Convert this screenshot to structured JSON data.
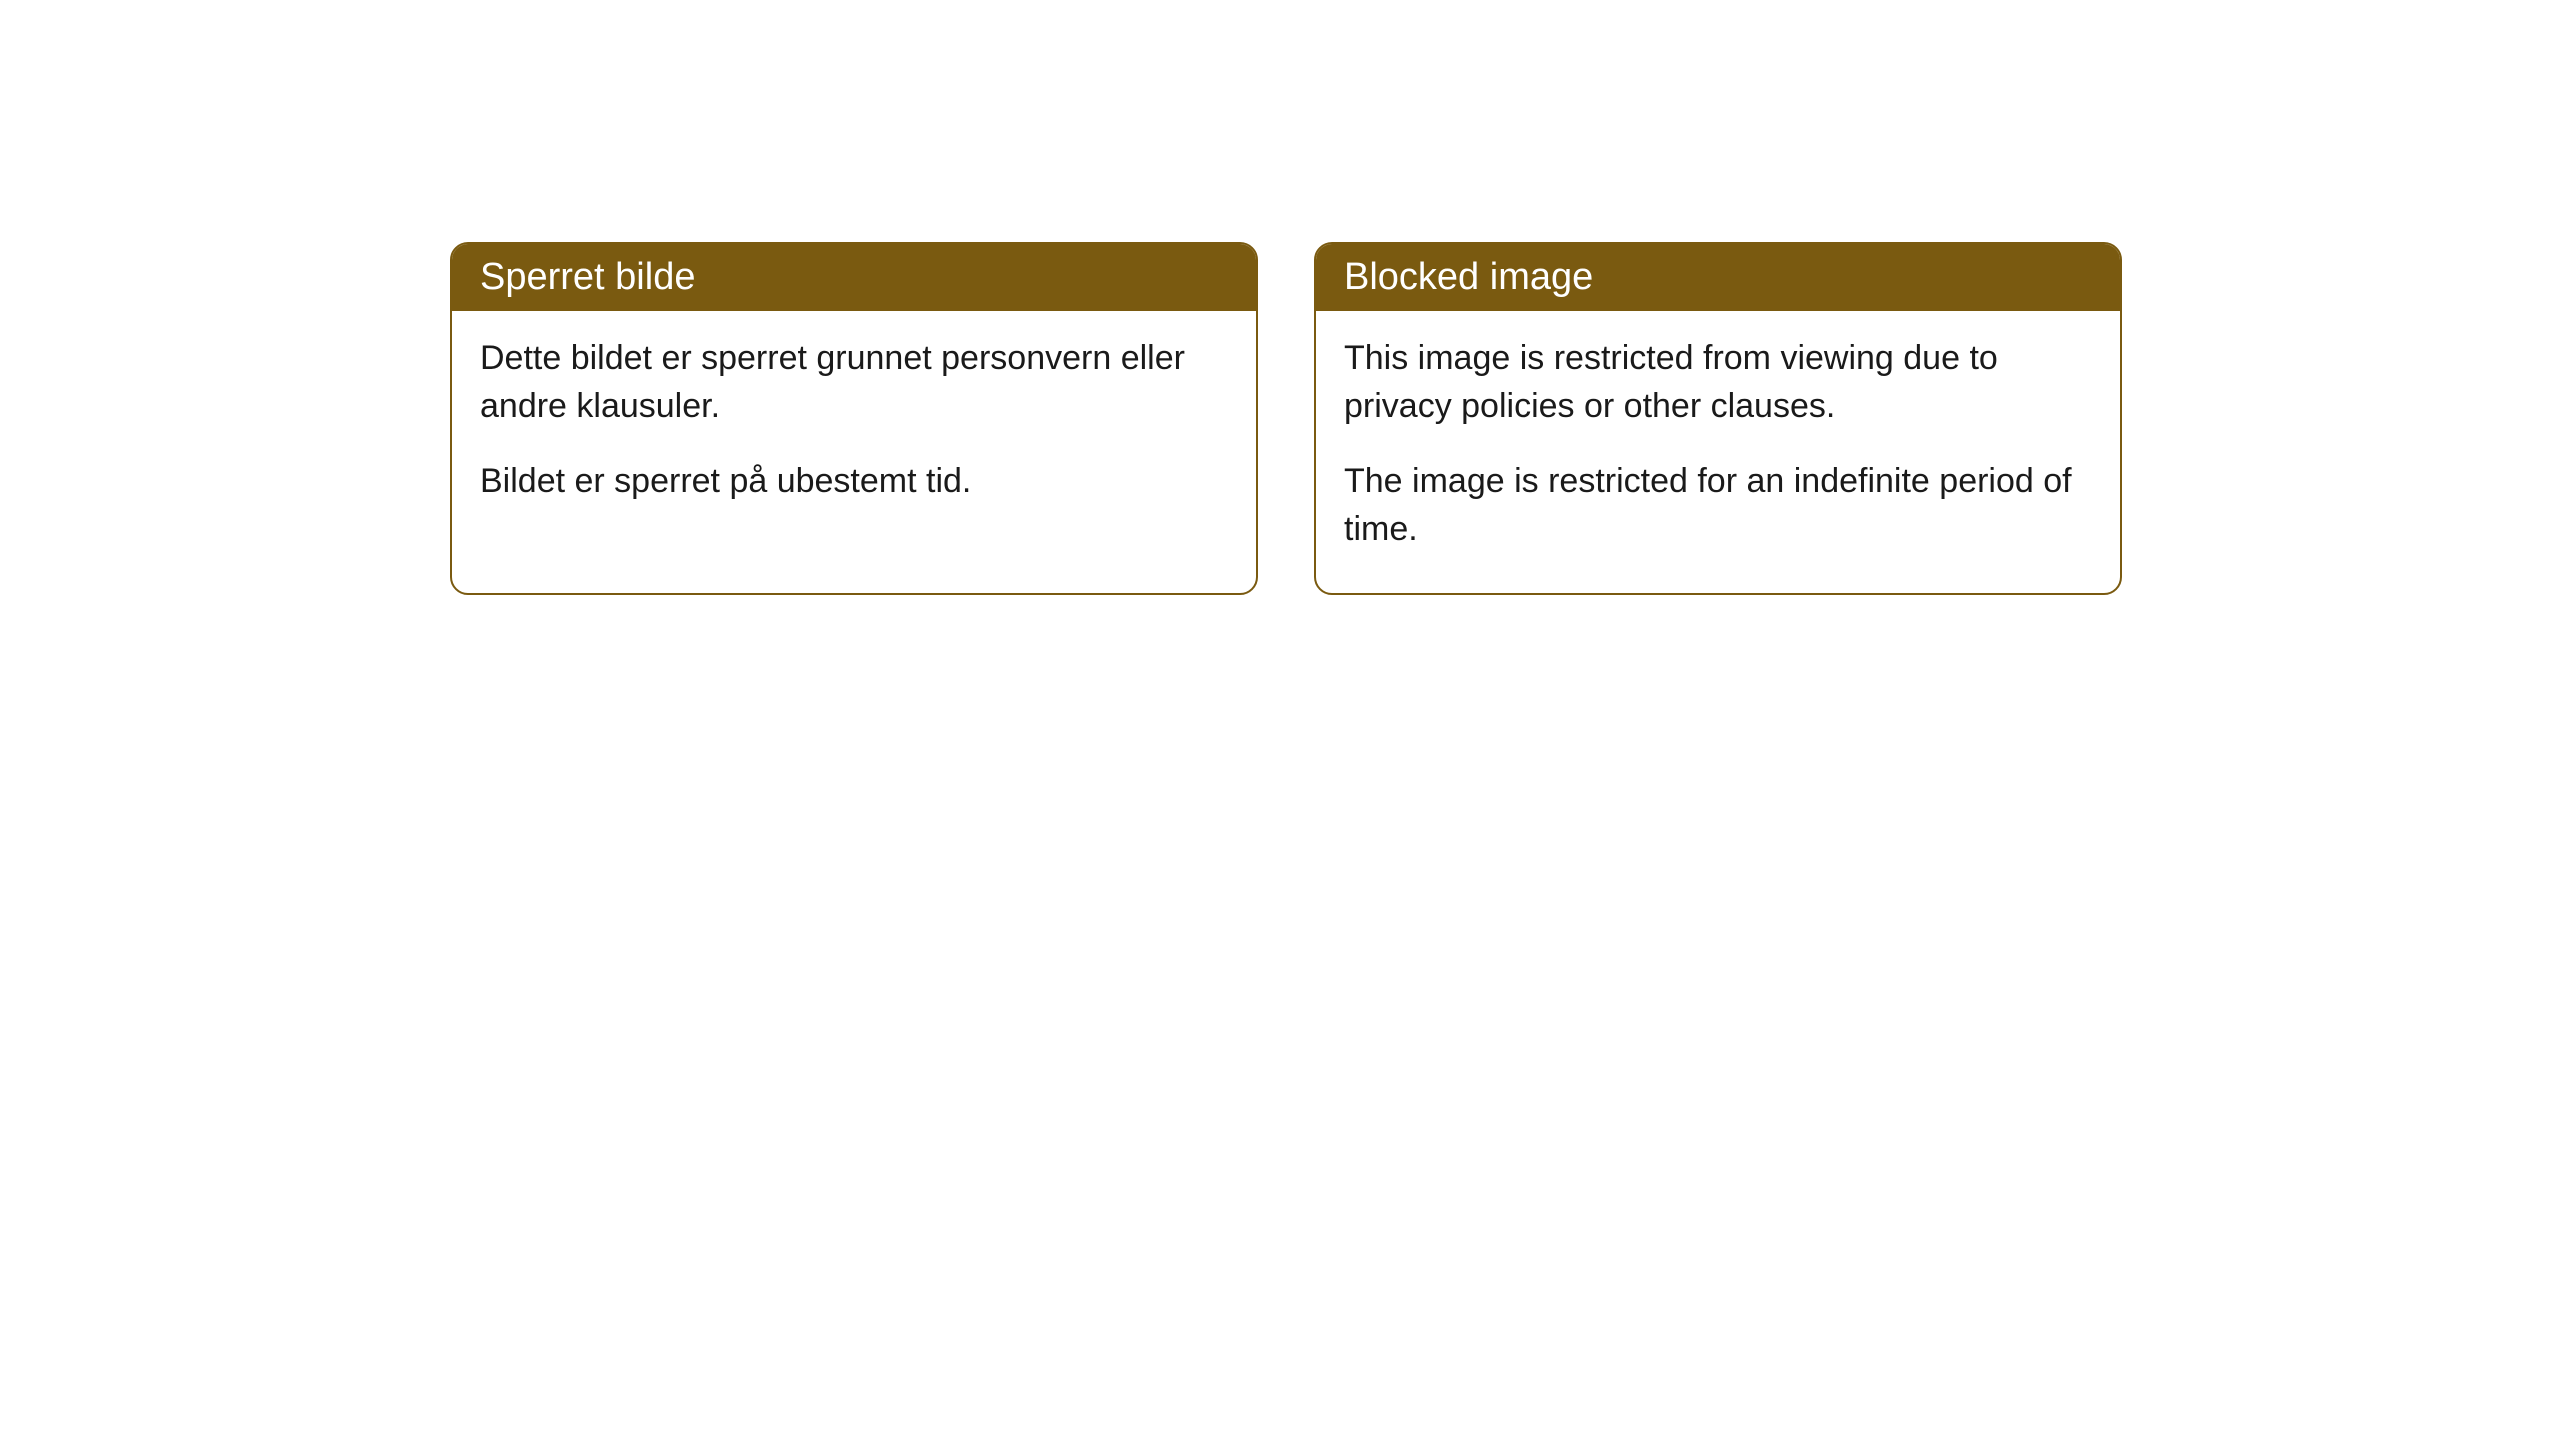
{
  "cards": [
    {
      "title": "Sperret bilde",
      "paragraph1": "Dette bildet er sperret grunnet personvern eller andre klausuler.",
      "paragraph2": "Bildet er sperret på ubestemt tid."
    },
    {
      "title": "Blocked image",
      "paragraph1": "This image is restricted from viewing due to privacy policies or other clauses.",
      "paragraph2": "The image is restricted for an indefinite period of time."
    }
  ],
  "styling": {
    "header_bg_color": "#7a5a10",
    "header_text_color": "#ffffff",
    "border_color": "#7a5a10",
    "body_bg_color": "#ffffff",
    "body_text_color": "#1a1a1a",
    "border_radius": 18,
    "title_fontsize": 38,
    "body_fontsize": 34
  }
}
